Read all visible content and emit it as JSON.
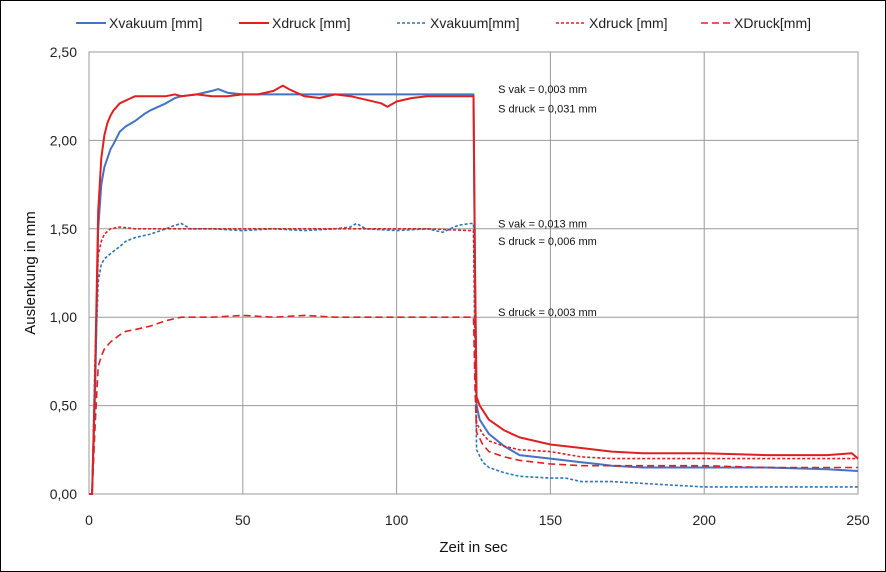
{
  "chart_data": {
    "type": "line",
    "xlabel": "Zeit in sec",
    "ylabel": "Auslenkung in mm",
    "xlim": [
      0,
      250
    ],
    "ylim": [
      0,
      2.5
    ],
    "x_ticks": [
      {
        "value": 0,
        "label": "0"
      },
      {
        "value": 50,
        "label": "50"
      },
      {
        "value": 100,
        "label": "100"
      },
      {
        "value": 150,
        "label": "150"
      },
      {
        "value": 200,
        "label": "200"
      },
      {
        "value": 250,
        "label": "250"
      }
    ],
    "y_ticks": [
      {
        "value": 0,
        "label": "0,00"
      },
      {
        "value": 0.5,
        "label": "0,50"
      },
      {
        "value": 1.0,
        "label": "1,00"
      },
      {
        "value": 1.5,
        "label": "1,50"
      },
      {
        "value": 2.0,
        "label": "2,00"
      },
      {
        "value": 2.5,
        "label": "2,50"
      }
    ],
    "grid": true,
    "legend_position": "top",
    "series": [
      {
        "name": "Xvakuum [mm]",
        "color": "#4472C4",
        "style": "solid",
        "points": [
          [
            0,
            0
          ],
          [
            1,
            0
          ],
          [
            2,
            0.6
          ],
          [
            3,
            1.5
          ],
          [
            4,
            1.75
          ],
          [
            5,
            1.85
          ],
          [
            6,
            1.9
          ],
          [
            7,
            1.95
          ],
          [
            8,
            1.98
          ],
          [
            10,
            2.05
          ],
          [
            12,
            2.08
          ],
          [
            15,
            2.11
          ],
          [
            18,
            2.15
          ],
          [
            20,
            2.17
          ],
          [
            25,
            2.21
          ],
          [
            28,
            2.24
          ],
          [
            30,
            2.25
          ],
          [
            35,
            2.26
          ],
          [
            40,
            2.28
          ],
          [
            42,
            2.29
          ],
          [
            45,
            2.27
          ],
          [
            50,
            2.26
          ],
          [
            60,
            2.26
          ],
          [
            80,
            2.26
          ],
          [
            100,
            2.26
          ],
          [
            110,
            2.26
          ],
          [
            124,
            2.26
          ],
          [
            125,
            2.26
          ],
          [
            125.5,
            1.2
          ],
          [
            126,
            0.5
          ],
          [
            127,
            0.42
          ],
          [
            130,
            0.34
          ],
          [
            135,
            0.27
          ],
          [
            140,
            0.22
          ],
          [
            150,
            0.2
          ],
          [
            160,
            0.18
          ],
          [
            165,
            0.17
          ],
          [
            170,
            0.16
          ],
          [
            180,
            0.15
          ],
          [
            200,
            0.15
          ],
          [
            220,
            0.15
          ],
          [
            240,
            0.14
          ],
          [
            250,
            0.13
          ]
        ]
      },
      {
        "name": "Xdruck [mm]",
        "color": "#E02020",
        "style": "solid",
        "points": [
          [
            0,
            0
          ],
          [
            1,
            0
          ],
          [
            2,
            0.7
          ],
          [
            3,
            1.6
          ],
          [
            4,
            1.9
          ],
          [
            5,
            2.03
          ],
          [
            6,
            2.1
          ],
          [
            7,
            2.14
          ],
          [
            8,
            2.17
          ],
          [
            10,
            2.21
          ],
          [
            15,
            2.25
          ],
          [
            20,
            2.25
          ],
          [
            25,
            2.25
          ],
          [
            28,
            2.26
          ],
          [
            30,
            2.25
          ],
          [
            35,
            2.26
          ],
          [
            40,
            2.25
          ],
          [
            45,
            2.25
          ],
          [
            50,
            2.26
          ],
          [
            55,
            2.26
          ],
          [
            60,
            2.28
          ],
          [
            63,
            2.31
          ],
          [
            65,
            2.29
          ],
          [
            70,
            2.25
          ],
          [
            75,
            2.24
          ],
          [
            80,
            2.26
          ],
          [
            85,
            2.25
          ],
          [
            90,
            2.23
          ],
          [
            95,
            2.21
          ],
          [
            97,
            2.19
          ],
          [
            100,
            2.22
          ],
          [
            105,
            2.24
          ],
          [
            110,
            2.25
          ],
          [
            115,
            2.25
          ],
          [
            124,
            2.25
          ],
          [
            125,
            2.25
          ],
          [
            125.5,
            1.3
          ],
          [
            126,
            0.55
          ],
          [
            127,
            0.5
          ],
          [
            130,
            0.42
          ],
          [
            135,
            0.36
          ],
          [
            140,
            0.32
          ],
          [
            150,
            0.28
          ],
          [
            160,
            0.26
          ],
          [
            170,
            0.24
          ],
          [
            180,
            0.23
          ],
          [
            200,
            0.23
          ],
          [
            220,
            0.22
          ],
          [
            240,
            0.22
          ],
          [
            248,
            0.23
          ],
          [
            250,
            0.2
          ]
        ]
      },
      {
        "name": "Xvakuum[mm]",
        "color": "#2E75B6",
        "style": "dashed-short",
        "points": [
          [
            0,
            0
          ],
          [
            1,
            0
          ],
          [
            2,
            0.7
          ],
          [
            3,
            1.2
          ],
          [
            4,
            1.3
          ],
          [
            5,
            1.33
          ],
          [
            7,
            1.36
          ],
          [
            10,
            1.4
          ],
          [
            12,
            1.43
          ],
          [
            15,
            1.45
          ],
          [
            20,
            1.47
          ],
          [
            25,
            1.5
          ],
          [
            28,
            1.52
          ],
          [
            30,
            1.53
          ],
          [
            33,
            1.5
          ],
          [
            40,
            1.5
          ],
          [
            50,
            1.49
          ],
          [
            60,
            1.5
          ],
          [
            70,
            1.49
          ],
          [
            80,
            1.5
          ],
          [
            85,
            1.51
          ],
          [
            87,
            1.53
          ],
          [
            90,
            1.5
          ],
          [
            100,
            1.49
          ],
          [
            110,
            1.5
          ],
          [
            115,
            1.48
          ],
          [
            120,
            1.52
          ],
          [
            124,
            1.53
          ],
          [
            125,
            1.53
          ],
          [
            125.5,
            0.8
          ],
          [
            126,
            0.25
          ],
          [
            128,
            0.18
          ],
          [
            130,
            0.15
          ],
          [
            135,
            0.12
          ],
          [
            140,
            0.1
          ],
          [
            150,
            0.09
          ],
          [
            155,
            0.09
          ],
          [
            160,
            0.07
          ],
          [
            170,
            0.07
          ],
          [
            180,
            0.06
          ],
          [
            190,
            0.05
          ],
          [
            200,
            0.04
          ],
          [
            220,
            0.04
          ],
          [
            250,
            0.04
          ]
        ]
      },
      {
        "name": "Xdruck [mm]",
        "color": "#E02020",
        "style": "dashed-short",
        "points": [
          [
            0,
            0
          ],
          [
            1,
            0
          ],
          [
            2,
            0.8
          ],
          [
            3,
            1.35
          ],
          [
            4,
            1.43
          ],
          [
            5,
            1.47
          ],
          [
            7,
            1.5
          ],
          [
            10,
            1.51
          ],
          [
            15,
            1.5
          ],
          [
            20,
            1.5
          ],
          [
            30,
            1.5
          ],
          [
            40,
            1.5
          ],
          [
            50,
            1.5
          ],
          [
            60,
            1.5
          ],
          [
            70,
            1.5
          ],
          [
            80,
            1.5
          ],
          [
            90,
            1.5
          ],
          [
            100,
            1.5
          ],
          [
            110,
            1.5
          ],
          [
            124,
            1.49
          ],
          [
            125,
            1.49
          ],
          [
            125.5,
            0.9
          ],
          [
            126,
            0.4
          ],
          [
            128,
            0.34
          ],
          [
            130,
            0.3
          ],
          [
            135,
            0.27
          ],
          [
            140,
            0.25
          ],
          [
            150,
            0.24
          ],
          [
            160,
            0.21
          ],
          [
            170,
            0.2
          ],
          [
            180,
            0.2
          ],
          [
            200,
            0.2
          ],
          [
            220,
            0.2
          ],
          [
            250,
            0.2
          ]
        ]
      },
      {
        "name": "XDruck[mm]",
        "color": "#E02020",
        "style": "dashed-long",
        "points": [
          [
            0,
            0
          ],
          [
            1,
            0
          ],
          [
            2,
            0.4
          ],
          [
            3,
            0.72
          ],
          [
            4,
            0.78
          ],
          [
            5,
            0.82
          ],
          [
            7,
            0.86
          ],
          [
            10,
            0.9
          ],
          [
            12,
            0.92
          ],
          [
            15,
            0.93
          ],
          [
            20,
            0.95
          ],
          [
            25,
            0.98
          ],
          [
            30,
            1.0
          ],
          [
            40,
            1.0
          ],
          [
            50,
            1.01
          ],
          [
            60,
            1.0
          ],
          [
            70,
            1.01
          ],
          [
            80,
            1.0
          ],
          [
            90,
            1.0
          ],
          [
            100,
            1.0
          ],
          [
            110,
            1.0
          ],
          [
            124,
            1.0
          ],
          [
            125,
            1.0
          ],
          [
            125.5,
            0.6
          ],
          [
            126,
            0.35
          ],
          [
            128,
            0.28
          ],
          [
            130,
            0.24
          ],
          [
            135,
            0.21
          ],
          [
            140,
            0.19
          ],
          [
            150,
            0.17
          ],
          [
            160,
            0.16
          ],
          [
            170,
            0.16
          ],
          [
            200,
            0.16
          ],
          [
            220,
            0.15
          ],
          [
            240,
            0.15
          ],
          [
            250,
            0.15
          ]
        ]
      }
    ],
    "annotations": [
      {
        "text": "S vak = 0,003  mm",
        "x": 133,
        "y": 2.29
      },
      {
        "text": "S druck = 0,031  mm",
        "x": 133,
        "y": 2.18
      },
      {
        "text": "S vak = 0,013  mm",
        "x": 133,
        "y": 1.53
      },
      {
        "text": "S druck = 0,006  mm",
        "x": 133,
        "y": 1.43
      },
      {
        "text": "S druck = 0,003  mm",
        "x": 133,
        "y": 1.03
      }
    ]
  }
}
